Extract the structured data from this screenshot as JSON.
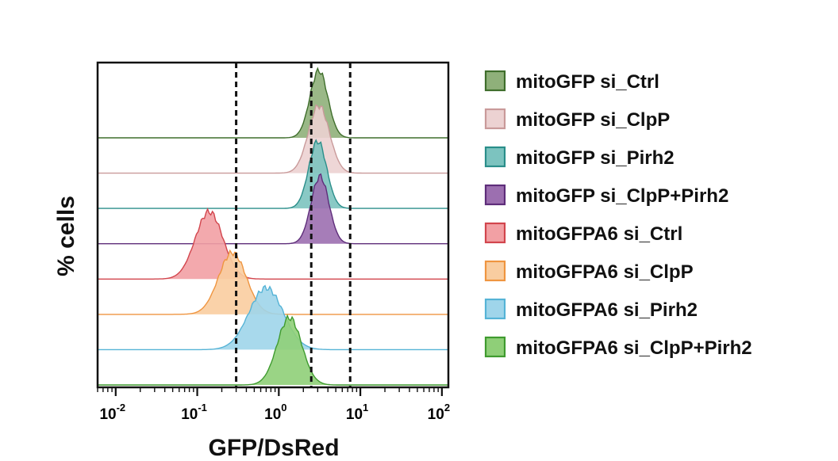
{
  "chart_data": {
    "type": "histogram",
    "xlabel": "GFP/DsRed",
    "ylabel": "% cells",
    "xscale": "log",
    "xlim": [
      0.006,
      120
    ],
    "x_ticks": [
      {
        "value": 0.01,
        "base": "10",
        "exp": "-2"
      },
      {
        "value": 0.1,
        "base": "10",
        "exp": "-1"
      },
      {
        "value": 1,
        "base": "10",
        "exp": "0"
      },
      {
        "value": 10,
        "base": "10",
        "exp": "1"
      },
      {
        "value": 100,
        "base": "10",
        "exp": "2"
      }
    ],
    "gates": [
      0.3,
      2.5,
      7.5
    ],
    "legend_position": "right",
    "series": [
      {
        "name": "mitoGFP si_Ctrl",
        "peak": 3.1,
        "spread": 0.11,
        "height": 0.85,
        "fill": "#8fb07a",
        "stroke": "#3f6e2c"
      },
      {
        "name": "mitoGFP si_ClpP",
        "peak": 3.1,
        "spread": 0.13,
        "height": 0.85,
        "fill": "#ecd2d2",
        "stroke": "#c99a9a"
      },
      {
        "name": "mitoGFP si_Pirh2",
        "peak": 3.0,
        "spread": 0.11,
        "height": 0.85,
        "fill": "#7cc3bf",
        "stroke": "#2a8e8a"
      },
      {
        "name": "mitoGFP si_ClpP+Pirh2",
        "peak": 3.2,
        "spread": 0.11,
        "height": 0.85,
        "fill": "#9c6fb0",
        "stroke": "#5e2d7a"
      },
      {
        "name": "mitoGFPA6 si_Ctrl",
        "peak": 0.14,
        "spread": 0.17,
        "height": 0.85,
        "fill": "#f2a0a4",
        "stroke": "#d2454d"
      },
      {
        "name": "mitoGFPA6 si_ClpP",
        "peak": 0.27,
        "spread": 0.17,
        "height": 0.78,
        "fill": "#f9cda0",
        "stroke": "#ef9540"
      },
      {
        "name": "mitoGFPA6 si_Pirh2",
        "peak": 0.7,
        "spread": 0.21,
        "height": 0.78,
        "fill": "#9fd5ea",
        "stroke": "#55b3d6"
      },
      {
        "name": "mitoGFPA6 si_ClpP+Pirh2",
        "peak": 1.35,
        "spread": 0.15,
        "height": 0.85,
        "fill": "#8fcf78",
        "stroke": "#3f9b2f"
      }
    ]
  }
}
